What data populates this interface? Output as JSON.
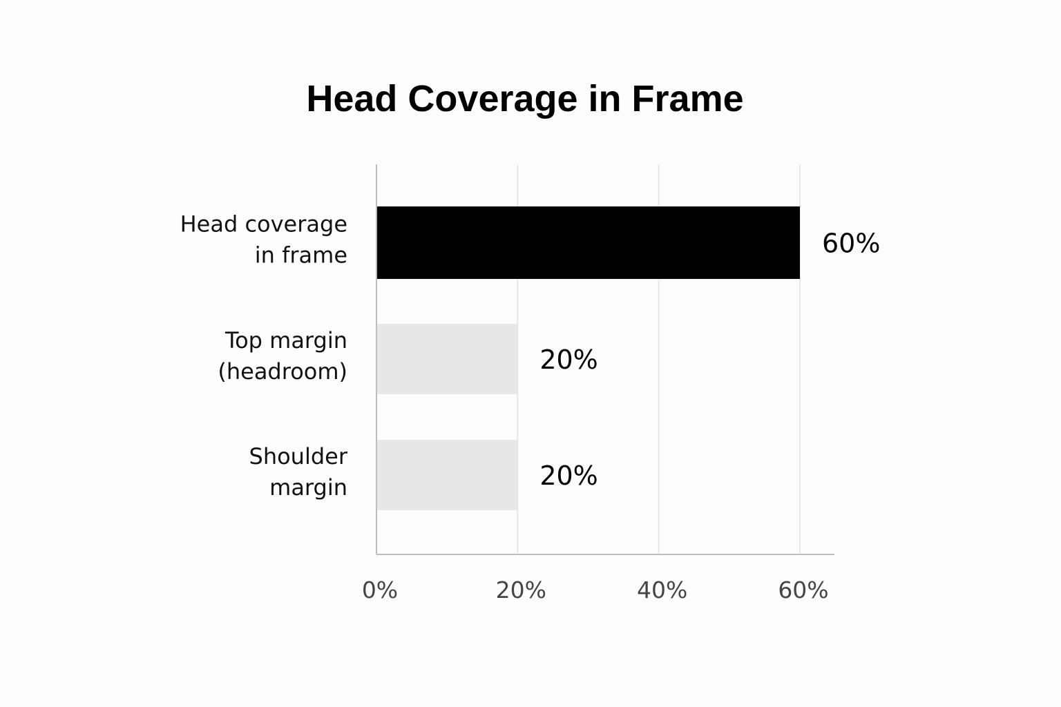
{
  "chart_data": {
    "type": "bar",
    "orientation": "horizontal",
    "title": "Head Coverage in Frame",
    "xlabel": "",
    "ylabel": "",
    "categories": [
      [
        "Head coverage",
        "in frame"
      ],
      [
        "Top margin",
        "(headroom)"
      ],
      [
        "Shoulder",
        "margin"
      ]
    ],
    "values": [
      60,
      20,
      20
    ],
    "value_labels": [
      "60%",
      "20%",
      "20%"
    ],
    "xlim": [
      0,
      65
    ],
    "xticks": [
      0,
      20,
      40,
      60
    ],
    "xtick_labels": [
      "0%",
      "20%",
      "40%",
      "60%"
    ],
    "grid": true,
    "legend": "none",
    "colors": {
      "highlight_bar": "#000000",
      "other_bars": "#e8e7e5",
      "grid": "#e2e2e2",
      "axis": "#bdbdbd"
    }
  }
}
